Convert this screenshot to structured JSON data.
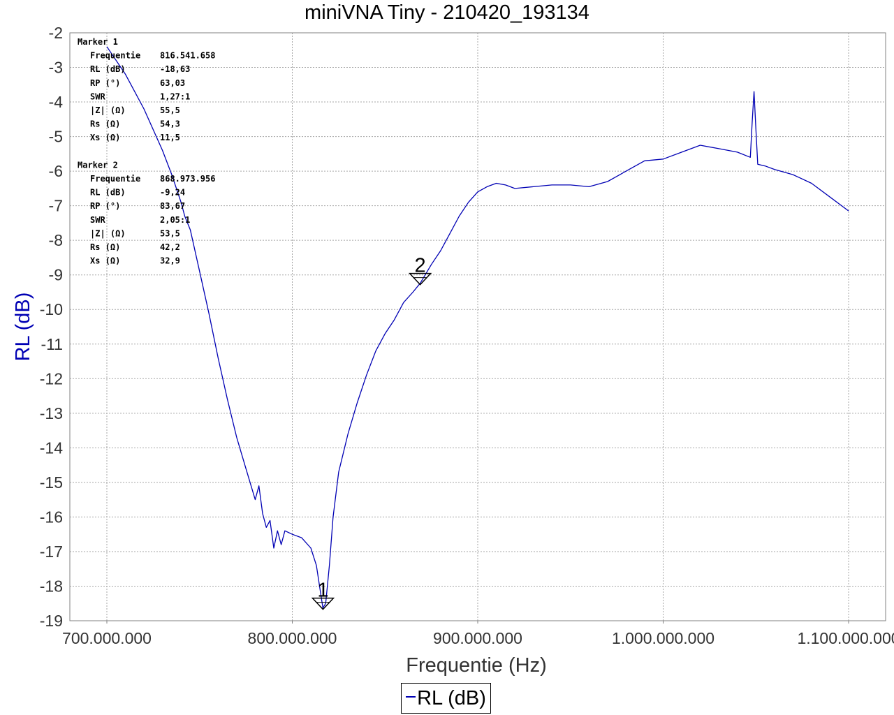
{
  "colors": {
    "series": "#0000b4",
    "ylabel": "#0000b4",
    "grid": "#a6a6a6"
  },
  "chart_data": {
    "type": "line",
    "title": "miniVNA Tiny - 210420_193134",
    "xlabel": "Frequentie (Hz)",
    "ylabel": "RL (dB)",
    "xlim": [
      680000000,
      1120000000
    ],
    "ylim": [
      -19,
      -2
    ],
    "x_ticks": [
      700000000,
      800000000,
      900000000,
      1000000000,
      1100000000
    ],
    "x_tick_labels": [
      "700.000.000",
      "800.000.000",
      "900.000.000",
      "1.000.000.000",
      "1.100.000.000"
    ],
    "y_ticks": [
      -2,
      -3,
      -4,
      -5,
      -6,
      -7,
      -8,
      -9,
      -10,
      -11,
      -12,
      -13,
      -14,
      -15,
      -16,
      -17,
      -18,
      -19
    ],
    "y_tick_labels": [
      "-2",
      "-3",
      "-4",
      "-5",
      "-6",
      "-7",
      "-8",
      "-9",
      "-10",
      "-11",
      "-12",
      "-13",
      "-14",
      "-15",
      "-16",
      "-17",
      "-18",
      "-19"
    ],
    "grid": true,
    "legend": "bottom-center",
    "series": [
      {
        "name": "RL (dB)",
        "x": [
          700000000,
          710000000,
          720000000,
          730000000,
          735000000,
          740000000,
          742000000,
          745000000,
          750000000,
          755000000,
          760000000,
          765000000,
          770000000,
          775000000,
          780000000,
          782000000,
          784000000,
          786000000,
          788000000,
          790000000,
          792000000,
          794000000,
          796000000,
          800000000,
          805000000,
          810000000,
          813000000,
          816500000,
          818000000,
          820000000,
          822000000,
          825000000,
          830000000,
          835000000,
          840000000,
          845000000,
          850000000,
          855000000,
          860000000,
          865000000,
          869000000,
          875000000,
          880000000,
          885000000,
          890000000,
          895000000,
          900000000,
          905000000,
          910000000,
          915000000,
          920000000,
          930000000,
          940000000,
          950000000,
          960000000,
          970000000,
          980000000,
          990000000,
          1000000000,
          1010000000,
          1020000000,
          1030000000,
          1040000000,
          1047000000,
          1048000000,
          1049000000,
          1050000000,
          1051000000,
          1055000000,
          1060000000,
          1070000000,
          1080000000,
          1090000000,
          1100000000
        ],
        "values": [
          -2.4,
          -3.2,
          -4.2,
          -5.4,
          -6.1,
          -6.9,
          -7.3,
          -7.7,
          -8.9,
          -10.1,
          -11.4,
          -12.6,
          -13.7,
          -14.6,
          -15.5,
          -15.1,
          -15.9,
          -16.3,
          -16.1,
          -16.9,
          -16.4,
          -16.8,
          -16.4,
          -16.5,
          -16.6,
          -16.9,
          -17.4,
          -18.63,
          -18.5,
          -17.4,
          -16.0,
          -14.7,
          -13.6,
          -12.7,
          -11.9,
          -11.2,
          -10.7,
          -10.3,
          -9.8,
          -9.5,
          -9.24,
          -8.7,
          -8.3,
          -7.8,
          -7.3,
          -6.9,
          -6.6,
          -6.45,
          -6.35,
          -6.4,
          -6.5,
          -6.45,
          -6.4,
          -6.4,
          -6.45,
          -6.3,
          -6.0,
          -5.7,
          -5.65,
          -5.45,
          -5.25,
          -5.35,
          -5.45,
          -5.6,
          -4.6,
          -3.7,
          -4.8,
          -5.8,
          -5.85,
          -5.95,
          -6.1,
          -6.35,
          -6.75,
          -7.15
        ]
      }
    ],
    "markers": [
      {
        "label": "1",
        "heading": "Marker 1",
        "x": 816541658,
        "y": -18.63,
        "rows": [
          {
            "key": "Frequentie",
            "value": "816.541.658"
          },
          {
            "key": "RL (dB)",
            "value": "-18,63"
          },
          {
            "key": "RP (°)",
            "value": "63,03"
          },
          {
            "key": "SWR",
            "value": "1,27:1"
          },
          {
            "key": "|Z| (Ω)",
            "value": "55,5"
          },
          {
            "key": "Rs (Ω)",
            "value": "54,3"
          },
          {
            "key": "Xs (Ω)",
            "value": "11,5"
          }
        ]
      },
      {
        "label": "2",
        "heading": "Marker 2",
        "x": 868973956,
        "y": -9.24,
        "rows": [
          {
            "key": "Frequentie",
            "value": "868.973.956"
          },
          {
            "key": "RL (dB)",
            "value": "-9,24"
          },
          {
            "key": "RP (°)",
            "value": "83,67"
          },
          {
            "key": "SWR",
            "value": "2,05:1"
          },
          {
            "key": "|Z| (Ω)",
            "value": "53,5"
          },
          {
            "key": "Rs (Ω)",
            "value": "42,2"
          },
          {
            "key": "Xs (Ω)",
            "value": "32,9"
          }
        ]
      }
    ]
  },
  "legend": {
    "label": "RL (dB)"
  }
}
